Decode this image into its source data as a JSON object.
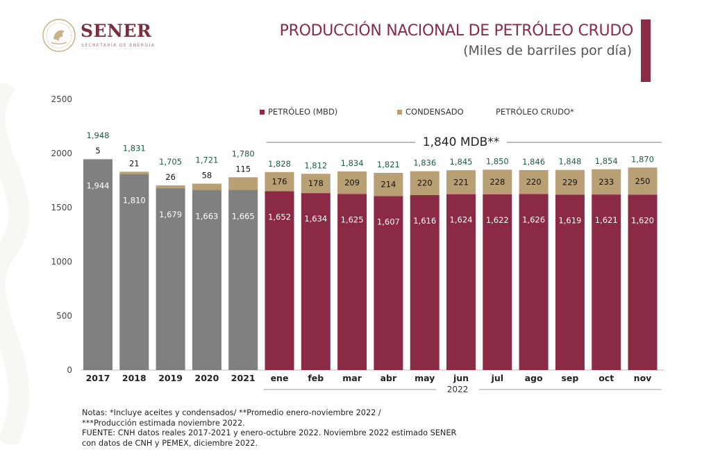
{
  "header": {
    "logo_name": "SENER",
    "logo_sub": "SECRETARÍA DE ENERGÍA",
    "title": "PRODUCCIÓN NACIONAL DE PETRÓLEO CRUDO",
    "subtitle": "(Miles de barriles por día)"
  },
  "chart_data": {
    "type": "bar",
    "stacked": true,
    "categories": [
      "2017",
      "2018",
      "2019",
      "2020",
      "2021",
      "ene",
      "feb",
      "mar",
      "abr",
      "may",
      "jun",
      "jul",
      "ago",
      "sep",
      "oct",
      "nov"
    ],
    "historical_count": 5,
    "series": [
      {
        "name": "PETRÓLEO (MBD)",
        "values": [
          1944,
          1810,
          1679,
          1663,
          1665,
          1652,
          1634,
          1625,
          1607,
          1616,
          1624,
          1622,
          1626,
          1619,
          1621,
          1620
        ]
      },
      {
        "name": "CONDENSADO",
        "values": [
          5,
          21,
          26,
          58,
          115,
          176,
          178,
          209,
          214,
          220,
          221,
          228,
          220,
          229,
          233,
          250
        ]
      }
    ],
    "totals_series_name": "PETRÓLEO CRUDO*",
    "totals": [
      1948,
      1831,
      1705,
      1721,
      1780,
      1828,
      1812,
      1834,
      1821,
      1836,
      1845,
      1850,
      1846,
      1848,
      1854,
      1870
    ],
    "ylim": [
      0,
      2500
    ],
    "yticks": [
      0,
      500,
      1000,
      1500,
      2000,
      2500
    ],
    "xlabel": "",
    "ylabel": "",
    "grid": false,
    "legend_position": "top-center",
    "year_group_label": "2022",
    "average_annotation": "1,840 MDB**",
    "colors": {
      "historical": "#808080",
      "petroleo": "#8b2a45",
      "condensado": "#b9a074",
      "totals_text": "#1f5a44",
      "bar_label": "#ffffff",
      "condensado_label": "#111111"
    }
  },
  "notes": [
    "Notas: *Incluye aceites y condensados/ **Promedio enero-noviembre 2022 /",
    "***Producción estimada noviembre 2022.",
    "FUENTE: CNH datos reales 2017-2021 y enero-octubre 2022. Noviembre 2022 estimado SENER",
    "con datos de CNH y PEMEX, diciembre 2022."
  ]
}
